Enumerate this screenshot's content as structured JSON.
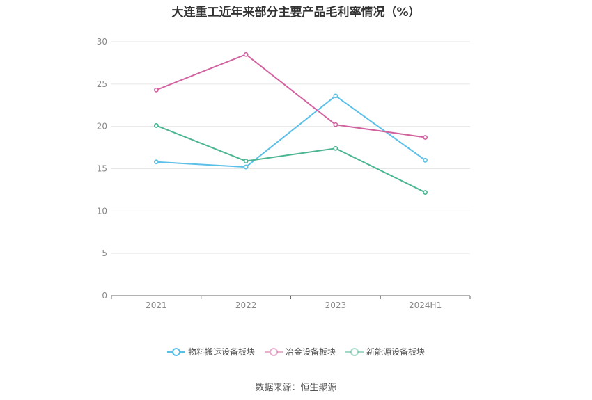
{
  "title": "大连重工近年来部分主要产品毛利率情况（%）",
  "source": "数据来源：恒生聚源",
  "chart_data": {
    "type": "line",
    "title": "大连重工近年来部分主要产品毛利率情况（%）",
    "categories": [
      "2021",
      "2022",
      "2023",
      "2024H1"
    ],
    "ylim": [
      0,
      30
    ],
    "yticks": [
      0,
      5,
      10,
      15,
      20,
      25,
      30
    ],
    "grid": true,
    "legend_position": "bottom",
    "series": [
      {
        "name": "物料搬运设备板块",
        "color": "#5bbfe8",
        "values": [
          15.8,
          15.2,
          23.6,
          16.0
        ]
      },
      {
        "name": "冶金设备板块",
        "color": "#d1619f",
        "values": [
          24.3,
          28.5,
          20.2,
          18.7
        ]
      },
      {
        "name": "新能源设备板块",
        "color": "#4bb592",
        "values": [
          20.1,
          15.9,
          17.4,
          12.2
        ]
      }
    ]
  }
}
